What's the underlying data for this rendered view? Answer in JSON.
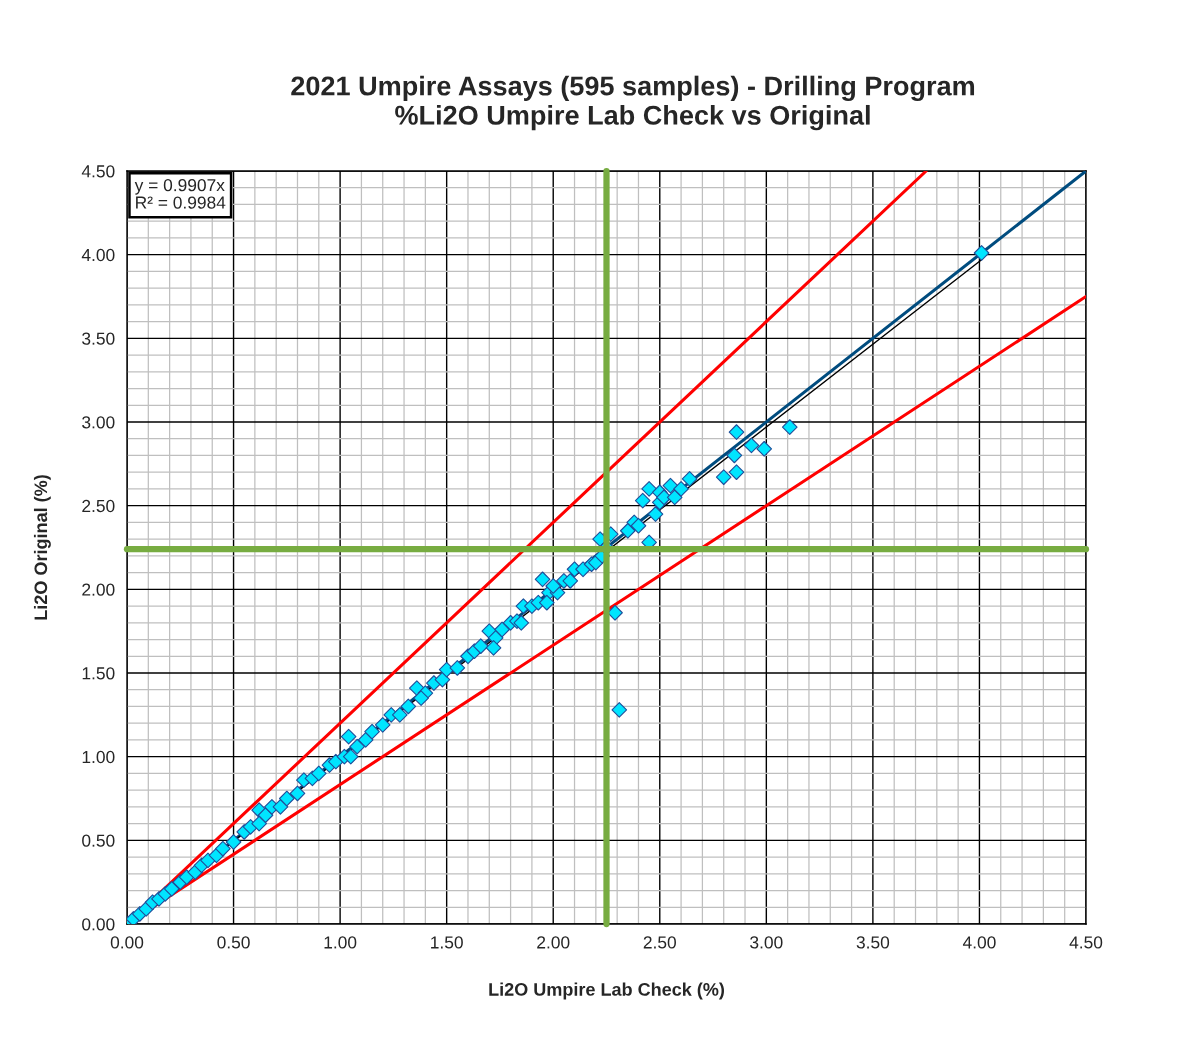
{
  "chart_data": {
    "type": "scatter",
    "title": "2021 Umpire Assays (595 samples) - Drilling Program\n%Li2O Umpire Lab Check vs Original",
    "xlabel": "Li2O Umpire Lab Check (%)",
    "ylabel": "Li2O Original (%)",
    "xlim": [
      0,
      4.5
    ],
    "ylim": [
      0,
      4.5
    ],
    "xticks": [
      {
        "value": 0,
        "label": "0.00"
      },
      {
        "value": 0.1,
        "label": null
      },
      {
        "value": 0.2,
        "label": null
      },
      {
        "value": 0.3,
        "label": null
      },
      {
        "value": 0.4,
        "label": null
      },
      {
        "value": 0.5,
        "label": "0.50"
      },
      {
        "value": 0.6,
        "label": null
      },
      {
        "value": 0.7,
        "label": null
      },
      {
        "value": 0.8,
        "label": null
      },
      {
        "value": 0.9,
        "label": null
      },
      {
        "value": 1.0,
        "label": "1.00"
      },
      {
        "value": 1.1,
        "label": null
      },
      {
        "value": 1.2,
        "label": null
      },
      {
        "value": 1.3,
        "label": null
      },
      {
        "value": 1.4,
        "label": null
      },
      {
        "value": 1.5,
        "label": "1.50"
      },
      {
        "value": 1.6,
        "label": null
      },
      {
        "value": 1.7,
        "label": null
      },
      {
        "value": 1.8,
        "label": null
      },
      {
        "value": 1.9,
        "label": null
      },
      {
        "value": 2.0,
        "label": "2.00"
      },
      {
        "value": 2.1,
        "label": null
      },
      {
        "value": 2.2,
        "label": null
      },
      {
        "value": 2.3,
        "label": null
      },
      {
        "value": 2.4,
        "label": null
      },
      {
        "value": 2.5,
        "label": "2.50"
      },
      {
        "value": 2.6,
        "label": null
      },
      {
        "value": 2.7,
        "label": null
      },
      {
        "value": 2.8,
        "label": null
      },
      {
        "value": 2.9,
        "label": null
      },
      {
        "value": 3.0,
        "label": "3.00"
      },
      {
        "value": 3.1,
        "label": null
      },
      {
        "value": 3.2,
        "label": null
      },
      {
        "value": 3.3,
        "label": null
      },
      {
        "value": 3.4,
        "label": null
      },
      {
        "value": 3.5,
        "label": "3.50"
      },
      {
        "value": 3.6,
        "label": null
      },
      {
        "value": 3.7,
        "label": null
      },
      {
        "value": 3.8,
        "label": null
      },
      {
        "value": 3.9,
        "label": null
      },
      {
        "value": 4.0,
        "label": "4.00"
      },
      {
        "value": 4.1,
        "label": null
      },
      {
        "value": 4.2,
        "label": null
      },
      {
        "value": 4.3,
        "label": null
      },
      {
        "value": 4.4,
        "label": null
      },
      {
        "value": 4.5,
        "label": "4.50"
      }
    ],
    "yticks": [
      {
        "value": 0,
        "label": "0.00"
      },
      {
        "value": 0.1,
        "label": null
      },
      {
        "value": 0.2,
        "label": null
      },
      {
        "value": 0.3,
        "label": null
      },
      {
        "value": 0.4,
        "label": null
      },
      {
        "value": 0.5,
        "label": "0.50"
      },
      {
        "value": 0.6,
        "label": null
      },
      {
        "value": 0.7,
        "label": null
      },
      {
        "value": 0.8,
        "label": null
      },
      {
        "value": 0.9,
        "label": null
      },
      {
        "value": 1.0,
        "label": "1.00"
      },
      {
        "value": 1.1,
        "label": null
      },
      {
        "value": 1.2,
        "label": null
      },
      {
        "value": 1.3,
        "label": null
      },
      {
        "value": 1.4,
        "label": null
      },
      {
        "value": 1.5,
        "label": "1.50"
      },
      {
        "value": 1.6,
        "label": null
      },
      {
        "value": 1.7,
        "label": null
      },
      {
        "value": 1.8,
        "label": null
      },
      {
        "value": 1.9,
        "label": null
      },
      {
        "value": 2.0,
        "label": "2.00"
      },
      {
        "value": 2.1,
        "label": null
      },
      {
        "value": 2.2,
        "label": null
      },
      {
        "value": 2.3,
        "label": null
      },
      {
        "value": 2.4,
        "label": null
      },
      {
        "value": 2.5,
        "label": "2.50"
      },
      {
        "value": 2.6,
        "label": null
      },
      {
        "value": 2.7,
        "label": null
      },
      {
        "value": 2.8,
        "label": null
      },
      {
        "value": 2.9,
        "label": null
      },
      {
        "value": 3.0,
        "label": "3.00"
      },
      {
        "value": 3.1,
        "label": null
      },
      {
        "value": 3.2,
        "label": null
      },
      {
        "value": 3.3,
        "label": null
      },
      {
        "value": 3.4,
        "label": null
      },
      {
        "value": 3.5,
        "label": "3.50"
      },
      {
        "value": 3.6,
        "label": null
      },
      {
        "value": 3.7,
        "label": null
      },
      {
        "value": 3.8,
        "label": null
      },
      {
        "value": 3.9,
        "label": null
      },
      {
        "value": 4.0,
        "label": "4.00"
      },
      {
        "value": 4.1,
        "label": null
      },
      {
        "value": 4.2,
        "label": null
      },
      {
        "value": 4.3,
        "label": null
      },
      {
        "value": 4.4,
        "label": null
      },
      {
        "value": 4.5,
        "label": "4.50"
      }
    ],
    "grid": true,
    "marker": "diamond",
    "series": [
      {
        "type": "line",
        "color": "#ff0000",
        "x": [
          0,
          3.75
        ],
        "values": [
          0,
          4.5
        ],
        "line_style": "solid",
        "marker": "none"
      },
      {
        "type": "line",
        "color": "#ff0000",
        "x": [
          0,
          4.5
        ],
        "values": [
          0,
          3.75
        ],
        "line_style": "solid",
        "marker": "none"
      },
      {
        "type": "line",
        "color": "#004c7f",
        "x": [
          0,
          4.5
        ],
        "values": [
          0,
          4.5
        ],
        "line_style": "solid",
        "marker": "none"
      },
      {
        "type": "line",
        "color": "#000000",
        "x": [
          0,
          4.01
        ],
        "values": [
          0,
          3.97
        ],
        "line_style": "solid",
        "marker": "none"
      },
      {
        "color": "#00e5ff",
        "x": [
          0.0,
          0.03,
          0.06,
          0.09,
          0.12,
          0.15,
          0.18,
          0.21,
          0.25,
          0.28,
          0.32,
          0.35,
          0.38,
          0.42,
          0.45,
          0.5,
          0.55,
          0.58,
          0.62,
          0.65,
          0.68,
          0.72,
          0.75,
          0.8,
          0.83,
          0.87,
          0.9,
          0.95,
          0.98,
          1.02,
          1.04,
          1.08,
          1.12,
          1.15,
          1.2,
          1.24,
          1.28,
          1.32,
          1.36,
          1.4,
          1.44,
          1.48,
          1.5,
          1.55,
          1.6,
          1.63,
          1.66,
          1.7,
          1.73,
          1.76,
          1.8,
          1.83,
          1.86,
          1.9,
          1.93,
          1.95,
          1.98,
          2.02,
          2.05,
          2.08,
          2.1,
          2.14,
          2.18,
          2.2,
          2.22,
          2.23,
          2.25,
          2.27,
          2.29,
          2.31,
          2.35,
          2.38,
          2.4,
          2.42,
          2.45,
          2.45,
          2.48,
          2.5,
          2.5,
          2.52,
          2.55,
          2.57,
          2.6,
          2.64,
          2.8,
          2.85,
          2.86,
          2.86,
          2.93,
          2.99,
          3.11,
          4.01,
          1.72,
          1.85,
          1.97,
          2.0,
          1.05,
          0.62,
          1.38
        ],
        "values": [
          0.0,
          0.03,
          0.06,
          0.09,
          0.13,
          0.15,
          0.18,
          0.21,
          0.25,
          0.28,
          0.31,
          0.35,
          0.38,
          0.41,
          0.45,
          0.49,
          0.55,
          0.58,
          0.68,
          0.65,
          0.7,
          0.7,
          0.75,
          0.78,
          0.86,
          0.87,
          0.9,
          0.95,
          0.97,
          1.0,
          1.12,
          1.06,
          1.1,
          1.15,
          1.19,
          1.25,
          1.25,
          1.3,
          1.41,
          1.38,
          1.44,
          1.46,
          1.52,
          1.53,
          1.6,
          1.63,
          1.66,
          1.75,
          1.71,
          1.76,
          1.8,
          1.81,
          1.9,
          1.9,
          1.92,
          2.06,
          1.98,
          1.98,
          2.05,
          2.05,
          2.12,
          2.12,
          2.15,
          2.16,
          2.3,
          2.2,
          2.25,
          2.33,
          1.86,
          1.28,
          2.35,
          2.4,
          2.38,
          2.53,
          2.6,
          2.28,
          2.45,
          2.58,
          2.52,
          2.55,
          2.62,
          2.55,
          2.6,
          2.66,
          2.67,
          2.8,
          2.94,
          2.7,
          2.86,
          2.84,
          2.97,
          4.01,
          1.65,
          1.8,
          1.92,
          2.02,
          1.0,
          0.6,
          1.35
        ]
      }
    ],
    "ref_lines": [
      {
        "axis": "x",
        "value": 2.25,
        "color": "#77ac41"
      },
      {
        "axis": "y",
        "value": 2.24,
        "color": "#77ac41"
      }
    ],
    "annotations": [
      "y = 0.9907x\nR² = 0.9984"
    ]
  }
}
